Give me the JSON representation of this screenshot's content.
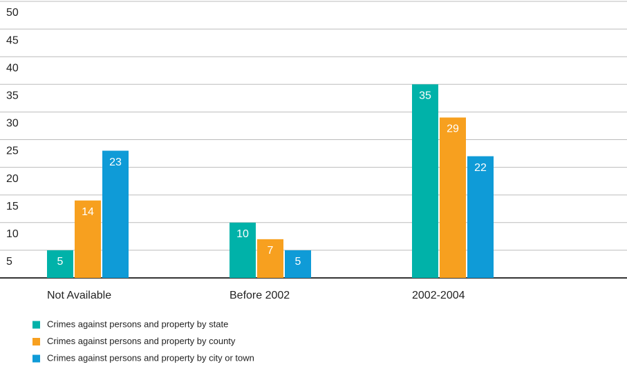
{
  "chart_data": {
    "type": "bar",
    "categories": [
      "Not Available",
      "Before 2002",
      "2002-2004"
    ],
    "series": [
      {
        "name": "Crimes against persons and property by state",
        "color": "#00b2a9",
        "values": [
          5,
          10,
          35
        ]
      },
      {
        "name": "Crimes against persons and property by county",
        "color": "#f7a01f",
        "values": [
          14,
          7,
          29
        ]
      },
      {
        "name": "Crimes against persons and property by city or town",
        "color": "#0f9bd7",
        "values": [
          23,
          5,
          22
        ]
      }
    ],
    "ylim": [
      0,
      50
    ],
    "yticks": [
      5,
      10,
      15,
      20,
      25,
      30,
      35,
      40,
      45,
      50
    ],
    "grid": true,
    "legend": "bottom-left"
  }
}
